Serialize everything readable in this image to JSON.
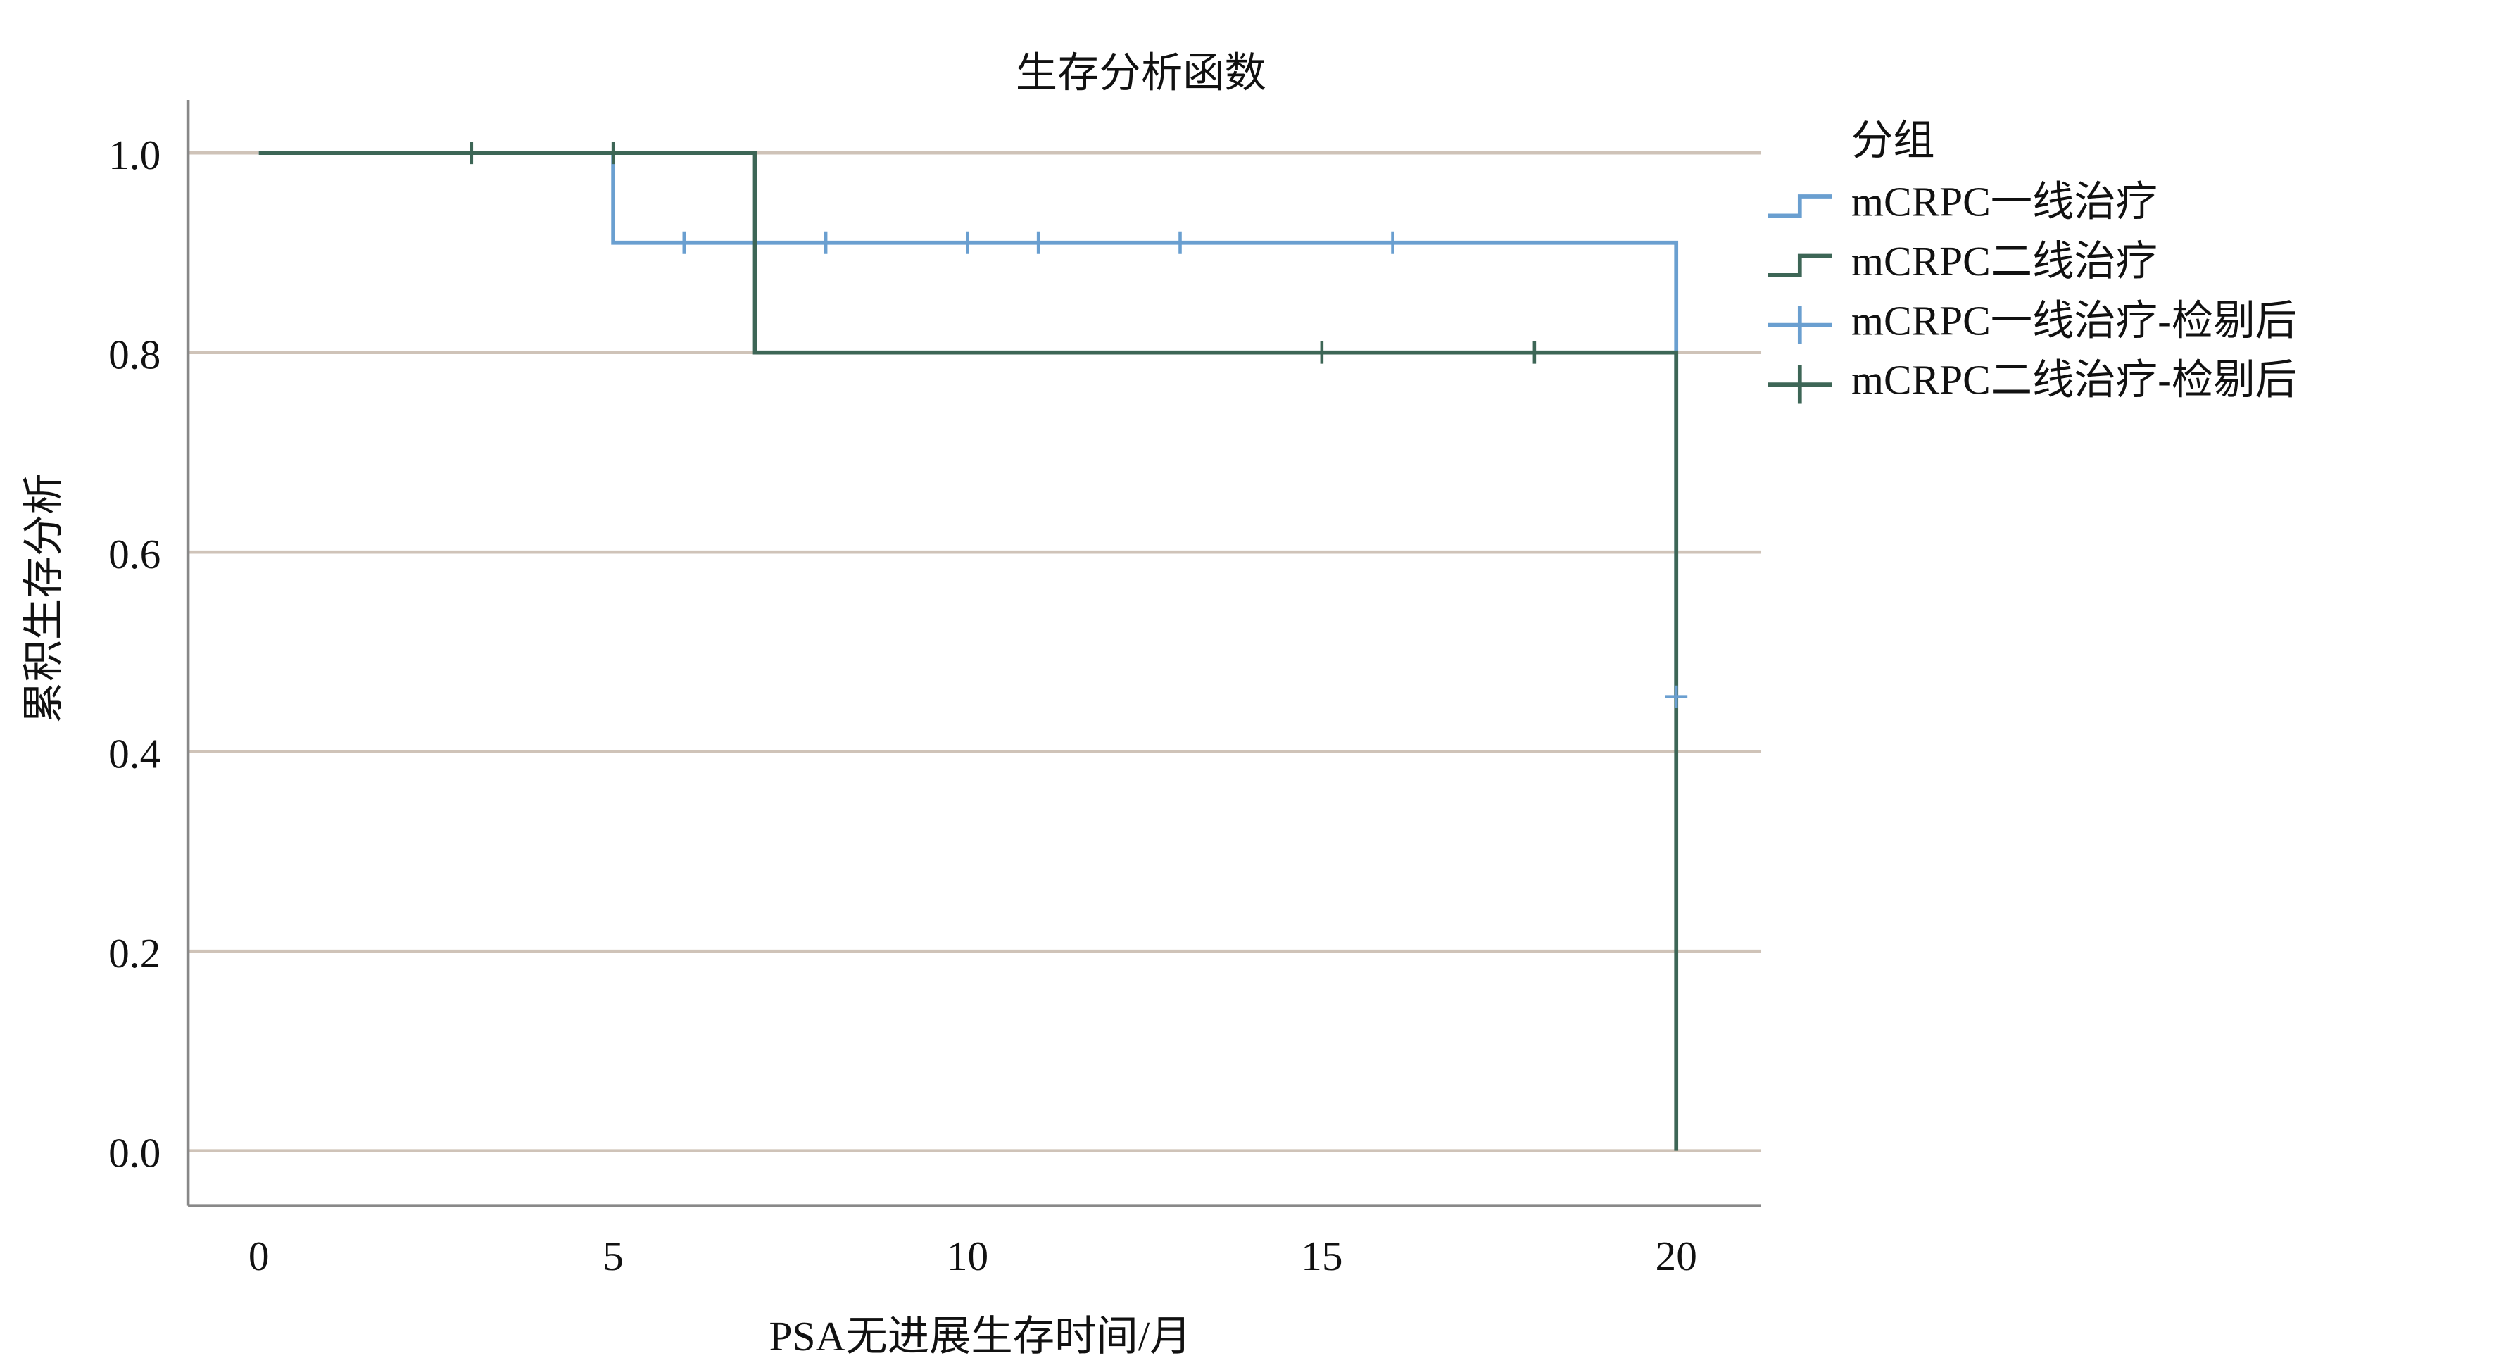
{
  "chart_data": {
    "type": "survival-step",
    "title": "生存分析函数",
    "x_label": "PSA无进展生存时间/月",
    "y_label": "累积生存分析",
    "legend_title": "分组",
    "xlim": [
      -1,
      21.2
    ],
    "ylim": [
      -0.055,
      1.053
    ],
    "xticks": [
      0,
      5,
      10,
      15,
      20
    ],
    "yticks": [
      {
        "value": 0,
        "label": "0.0"
      },
      0.2,
      0.4,
      0.6,
      0.8,
      {
        "value": 1,
        "label": "1.0"
      }
    ],
    "grid": true,
    "series": [
      {
        "name": "mCRPC一线治疗",
        "color": "#6a9fd0",
        "x": [
          0,
          5,
          5,
          20,
          20
        ],
        "y": [
          1,
          1,
          0.91,
          0.91,
          0.455
        ]
      },
      {
        "name": "mCRPC二线治疗",
        "color": "#3d6656",
        "x": [
          0,
          7,
          7,
          20,
          20
        ],
        "y": [
          1,
          1,
          0.8,
          0.8,
          0
        ]
      }
    ],
    "censored": [
      {
        "name": "mCRPC一线治疗-检剔后",
        "color": "#6a9fd0",
        "x": [
          6,
          8,
          10,
          11,
          13,
          16,
          20
        ],
        "y": [
          0.91,
          0.91,
          0.91,
          0.91,
          0.91,
          0.91,
          0.455
        ]
      },
      {
        "name": "mCRPC二线治疗-检剔后",
        "color": "#3d6656",
        "x": [
          3,
          5,
          15,
          18
        ],
        "y": [
          1,
          1,
          0.8,
          0.8
        ]
      }
    ]
  }
}
